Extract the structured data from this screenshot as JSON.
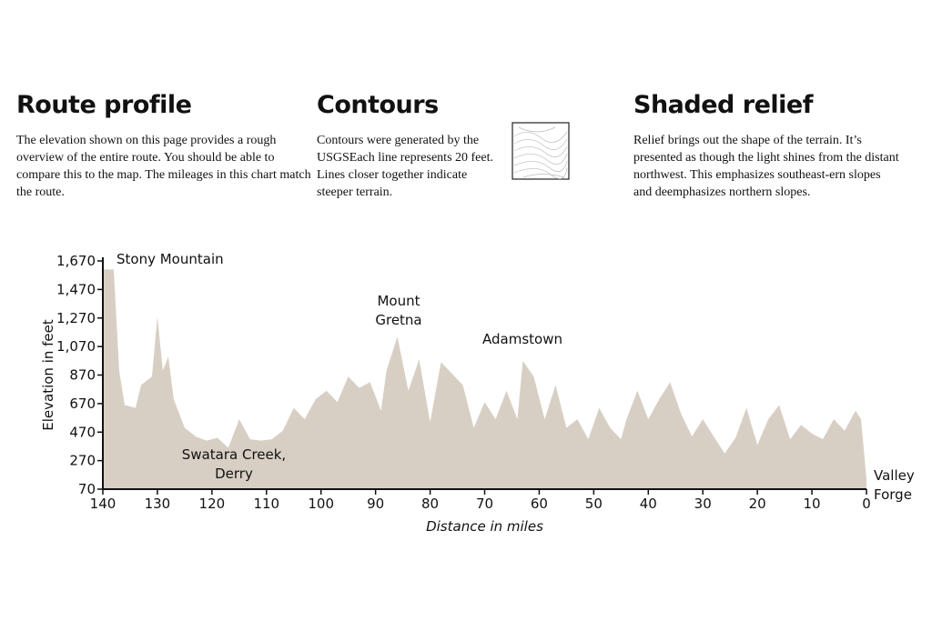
{
  "sections": [
    {
      "heading": "Route profile",
      "body": "The elevation shown on this page provides a rough overview of the entire route. You should be able to compare this to the map. The mileages in this chart match the route."
    },
    {
      "heading": "Contours",
      "body": "Contours were generated by the USGSEach line represents 20 feet. Lines closer together indicate steeper terrain."
    },
    {
      "heading": "Shaded relief",
      "body": "Relief brings out the shape of the terrain. It’s presented as though the light shines from the distant northwest. This emphasizes southeast-ern slopes and deemphasizes northern slopes."
    }
  ],
  "chart_data": {
    "type": "area",
    "x_label": "Distance in miles",
    "y_label": "Elevation in feet",
    "color": "#d8cfc4",
    "x": [
      140,
      138,
      137,
      136,
      134,
      133,
      131,
      130,
      129,
      128,
      127,
      125,
      123,
      121,
      119,
      117,
      115,
      113,
      111,
      109,
      107,
      105,
      103,
      101,
      99,
      97,
      95,
      93,
      91,
      89,
      88,
      86,
      84,
      82,
      80,
      78,
      76,
      74,
      72,
      70,
      68,
      66,
      64,
      63,
      61,
      59,
      57,
      55,
      53,
      51,
      49,
      47,
      45,
      44,
      42,
      40,
      38,
      36,
      34,
      32,
      30,
      28,
      26,
      24,
      22,
      20,
      18,
      16,
      14,
      12,
      10,
      8,
      6,
      4,
      2,
      1,
      0
    ],
    "values": [
      1610,
      1610,
      900,
      660,
      640,
      800,
      860,
      1280,
      900,
      1000,
      700,
      500,
      440,
      410,
      430,
      360,
      560,
      420,
      410,
      420,
      480,
      640,
      560,
      700,
      760,
      680,
      860,
      780,
      820,
      620,
      900,
      1140,
      760,
      980,
      540,
      960,
      880,
      800,
      500,
      680,
      560,
      760,
      560,
      970,
      860,
      560,
      800,
      500,
      560,
      420,
      640,
      500,
      420,
      560,
      760,
      560,
      700,
      820,
      600,
      440,
      560,
      440,
      320,
      430,
      640,
      380,
      560,
      660,
      420,
      520,
      460,
      420,
      560,
      480,
      620,
      560,
      140
    ],
    "xlim": [
      140,
      0
    ],
    "xticks": [
      140,
      130,
      120,
      110,
      100,
      90,
      80,
      70,
      60,
      50,
      40,
      30,
      20,
      10,
      0
    ],
    "ylim": [
      70,
      1670
    ],
    "yticks": [
      70,
      270,
      470,
      670,
      870,
      {
        "value": 1070,
        "label": "1,070"
      },
      {
        "value": 1270,
        "label": "1,270"
      },
      {
        "value": 1470,
        "label": "1,470"
      },
      {
        "value": 1670,
        "label": "1,670"
      }
    ],
    "annotations": [
      [
        "Stony Mountain"
      ],
      [
        "Swatara Creek,",
        "Derry"
      ],
      [
        "Mount",
        "Gretna"
      ],
      [
        "Adamstown"
      ],
      [
        "Valley",
        "Forge"
      ]
    ]
  }
}
